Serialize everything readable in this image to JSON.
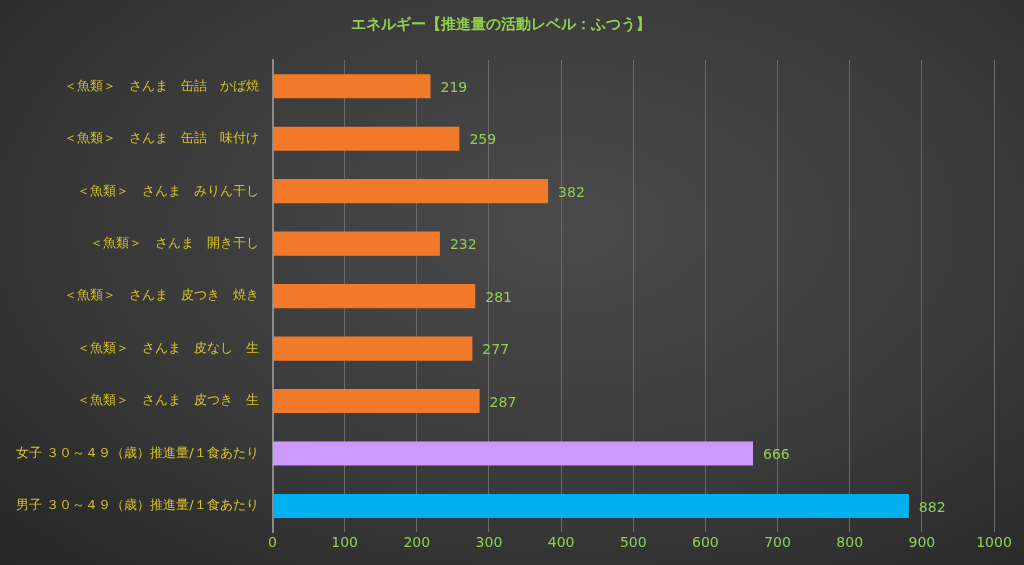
{
  "chart_data": {
    "type": "bar",
    "orientation": "horizontal",
    "title": "エネルギー【推進量の活動レベル：ふつう】",
    "categories": [
      "＜魚類＞　さんま　缶詰　かば焼",
      "＜魚類＞　さんま　缶詰　味付け",
      "＜魚類＞　さんま　みりん干し",
      "＜魚類＞　さんま　開き干し",
      "＜魚類＞　さんま　皮つき　焼き",
      "＜魚類＞　さんま　皮なし　生",
      "＜魚類＞　さんま　皮つき　生",
      "女子 ３０～４９（歳）推進量/１食あたり",
      "男子 ３０～４９（歳）推進量/１食あたり"
    ],
    "values": [
      219,
      259,
      382,
      232,
      281,
      277,
      287,
      666,
      882
    ],
    "colors": [
      "#f07a2a",
      "#f07a2a",
      "#f07a2a",
      "#f07a2a",
      "#f07a2a",
      "#f07a2a",
      "#f07a2a",
      "#cc99ff",
      "#00b0f0"
    ],
    "xlim": [
      0,
      1000
    ],
    "xticks": [
      0,
      100,
      200,
      300,
      400,
      500,
      600,
      700,
      800,
      900,
      1000
    ],
    "grid": "x",
    "data_labels": true,
    "legend": false
  }
}
